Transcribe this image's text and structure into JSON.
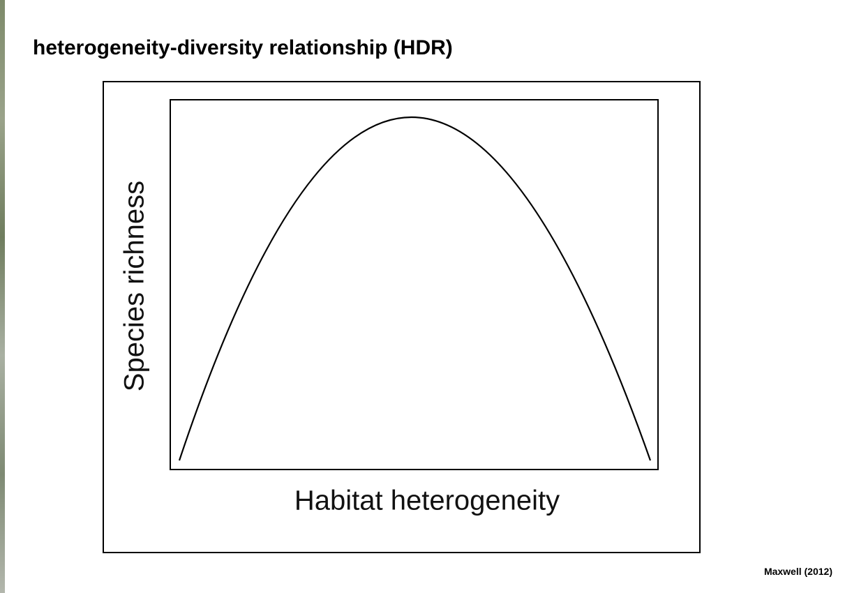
{
  "header": {
    "title": "heterogeneity-diversity relationship (HDR)"
  },
  "figure": {
    "y_label": "Species richness",
    "x_label": "Habitat heterogeneity"
  },
  "citation": "Maxwell (2012)"
}
